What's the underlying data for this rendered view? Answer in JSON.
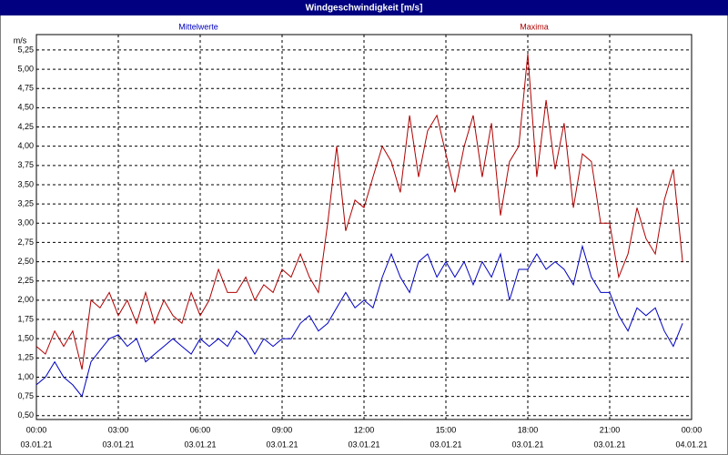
{
  "chart_data": {
    "type": "line",
    "title": "Windgeschwindigkeit [m/s]",
    "y_label": "m/s",
    "x": [
      0,
      0.33,
      0.67,
      1,
      1.33,
      1.67,
      2,
      2.33,
      2.67,
      3,
      3.33,
      3.67,
      4,
      4.33,
      4.67,
      5,
      5.33,
      5.67,
      6,
      6.33,
      6.67,
      7,
      7.33,
      7.67,
      8,
      8.33,
      8.67,
      9,
      9.33,
      9.67,
      10,
      10.33,
      10.67,
      11,
      11.33,
      11.67,
      12,
      12.33,
      12.67,
      13,
      13.33,
      13.67,
      14,
      14.33,
      14.67,
      15,
      15.33,
      15.67,
      16,
      16.33,
      16.67,
      17,
      17.33,
      17.67,
      18,
      18.33,
      18.67,
      19,
      19.33,
      19.67,
      20,
      20.33,
      20.67,
      21,
      21.33,
      21.67,
      22,
      22.33,
      22.67,
      23,
      23.33,
      23.67
    ],
    "series": [
      {
        "name": "Mittelwerte",
        "color": "#0000c0",
        "values": [
          0.9,
          1.0,
          1.2,
          1.0,
          0.9,
          0.75,
          1.2,
          1.35,
          1.5,
          1.55,
          1.4,
          1.5,
          1.2,
          1.3,
          1.4,
          1.5,
          1.4,
          1.3,
          1.5,
          1.4,
          1.5,
          1.4,
          1.6,
          1.5,
          1.3,
          1.5,
          1.4,
          1.5,
          1.5,
          1.7,
          1.8,
          1.6,
          1.7,
          1.9,
          2.1,
          1.9,
          2.0,
          1.9,
          2.3,
          2.6,
          2.3,
          2.1,
          2.5,
          2.6,
          2.3,
          2.5,
          2.3,
          2.5,
          2.2,
          2.5,
          2.3,
          2.6,
          2.0,
          2.4,
          2.4,
          2.6,
          2.4,
          2.5,
          2.4,
          2.2,
          2.7,
          2.3,
          2.1,
          2.1,
          1.8,
          1.6,
          1.9,
          1.8,
          1.9,
          1.6,
          1.4,
          1.7
        ]
      },
      {
        "name": "Maxima",
        "color": "#b00000",
        "values": [
          1.4,
          1.3,
          1.6,
          1.4,
          1.6,
          1.1,
          2.0,
          1.9,
          2.1,
          1.8,
          2.0,
          1.7,
          2.1,
          1.7,
          2.0,
          1.8,
          1.7,
          2.1,
          1.8,
          2.0,
          2.4,
          2.1,
          2.1,
          2.3,
          2.0,
          2.2,
          2.1,
          2.4,
          2.3,
          2.6,
          2.3,
          2.1,
          3.0,
          4.0,
          2.9,
          3.3,
          3.2,
          3.6,
          4.0,
          3.8,
          3.4,
          4.4,
          3.6,
          4.2,
          4.4,
          3.9,
          3.4,
          4.0,
          4.4,
          3.6,
          4.3,
          3.1,
          3.8,
          4.0,
          5.2,
          3.6,
          4.6,
          3.7,
          4.3,
          3.2,
          3.9,
          3.8,
          3.0,
          3.0,
          2.3,
          2.6,
          3.2,
          2.8,
          2.6,
          3.3,
          3.7,
          2.5
        ]
      }
    ],
    "xlim": [
      0,
      24
    ],
    "xticks": [
      {
        "value": 0,
        "label": "00:00"
      },
      {
        "value": 3,
        "label": "03:00"
      },
      {
        "value": 6,
        "label": "06:00"
      },
      {
        "value": 9,
        "label": "09:00"
      },
      {
        "value": 12,
        "label": "12:00"
      },
      {
        "value": 15,
        "label": "15:00"
      },
      {
        "value": 18,
        "label": "18:00"
      },
      {
        "value": 21,
        "label": "21:00"
      },
      {
        "value": 24,
        "label": "00:00"
      }
    ],
    "xtick_dates": [
      "03.01.21",
      "03.01.21",
      "03.01.21",
      "03.01.21",
      "03.01.21",
      "03.01.21",
      "03.01.21",
      "03.01.21",
      "04.01.21"
    ],
    "ylim": [
      0.45,
      5.45
    ],
    "yticks": [
      {
        "value": 0.5,
        "label": "0,50"
      },
      {
        "value": 0.75,
        "label": "0,75"
      },
      {
        "value": 1,
        "label": "1,00"
      },
      {
        "value": 1.25,
        "label": "1,25"
      },
      {
        "value": 1.5,
        "label": "1,50"
      },
      {
        "value": 1.75,
        "label": "1,75"
      },
      {
        "value": 2,
        "label": "2,00"
      },
      {
        "value": 2.25,
        "label": "2,25"
      },
      {
        "value": 2.5,
        "label": "2,50"
      },
      {
        "value": 2.75,
        "label": "2,75"
      },
      {
        "value": 3,
        "label": "3,00"
      },
      {
        "value": 3.25,
        "label": "3,25"
      },
      {
        "value": 3.5,
        "label": "3,50"
      },
      {
        "value": 3.75,
        "label": "3,75"
      },
      {
        "value": 4,
        "label": "4,00"
      },
      {
        "value": 4.25,
        "label": "4,25"
      },
      {
        "value": 4.5,
        "label": "4,50"
      },
      {
        "value": 4.75,
        "label": "4,75"
      },
      {
        "value": 5,
        "label": "5,00"
      },
      {
        "value": 5.25,
        "label": "5,25"
      }
    ],
    "grid": true
  }
}
